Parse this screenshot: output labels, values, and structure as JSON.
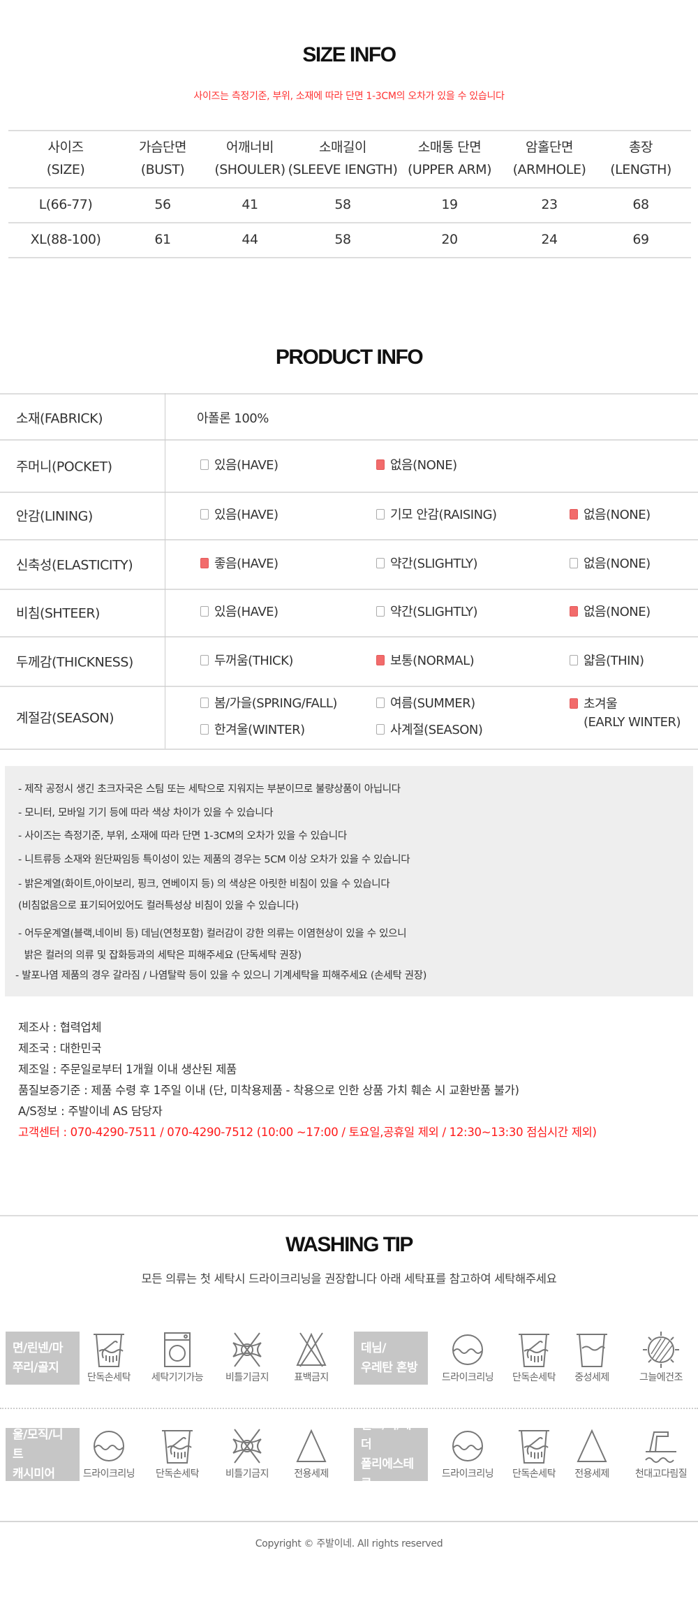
{
  "size_info": {
    "title": "SIZE INFO",
    "notice": "사이즈는 측정기준, 부위, 소재에 따라 단면 1-3CM의 오차가 있을 수 있습니다",
    "headers": [
      [
        "사이즈",
        "(SIZE)"
      ],
      [
        "가슴단면",
        "(BUST)"
      ],
      [
        "어깨너비",
        "(SHOULER)"
      ],
      [
        "소매길이",
        "(SLEEVE IENGTH)"
      ],
      [
        "소매통 단면",
        "(UPPER ARM)"
      ],
      [
        "암홀단면",
        "(ARMHOLE)"
      ],
      [
        "총장",
        "(LENGTH)"
      ]
    ],
    "rows": [
      [
        "L(66-77)",
        "56",
        "41",
        "58",
        "19",
        "23",
        "68"
      ],
      [
        "XL(88-100)",
        "61",
        "44",
        "58",
        "20",
        "24",
        "69"
      ]
    ]
  },
  "product_info": {
    "title": "PRODUCT INFO",
    "fabric": {
      "label": "소재(FABRICK)",
      "value": "아폴론 100%"
    },
    "rows": [
      {
        "label": "주머니(POCKET)",
        "options": [
          {
            "text": "있음(HAVE)",
            "checked": false
          },
          {
            "text": "없음(NONE)",
            "checked": true
          }
        ]
      },
      {
        "label": "안감(LINING)",
        "options": [
          {
            "text": "있음(HAVE)",
            "checked": false
          },
          {
            "text": "기모 안감(RAISING)",
            "checked": false
          },
          {
            "text": "없음(NONE)",
            "checked": true
          }
        ]
      },
      {
        "label": "신축성(ELASTICITY)",
        "options": [
          {
            "text": "좋음(HAVE)",
            "checked": true
          },
          {
            "text": "약간(SLIGHTLY)",
            "checked": false
          },
          {
            "text": "없음(NONE)",
            "checked": false
          }
        ]
      },
      {
        "label": "비침(SHTEER)",
        "options": [
          {
            "text": "있음(HAVE)",
            "checked": false
          },
          {
            "text": "약간(SLIGHTLY)",
            "checked": false
          },
          {
            "text": "없음(NONE)",
            "checked": true
          }
        ]
      },
      {
        "label": "두께감(THICKNESS)",
        "options": [
          {
            "text": "두꺼움(THICK)",
            "checked": false
          },
          {
            "text": "보통(NORMAL)",
            "checked": true
          },
          {
            "text": "얇음(THIN)",
            "checked": false
          }
        ]
      },
      {
        "label": "계절감(SEASON)",
        "options": [
          {
            "text": "봄/가을(SPRING/FALL)",
            "checked": false
          },
          {
            "text": "여름(SUMMER)",
            "checked": false
          },
          {
            "text": "초겨울\n(EARLY WINTER)",
            "checked": true
          },
          {
            "text": "한겨울(WINTER)",
            "checked": false
          },
          {
            "text": "사계절(SEASON)",
            "checked": false
          }
        ]
      }
    ],
    "check_color": "#f26b6b"
  },
  "notices": [
    "- 제작 공정시 생긴 초크자국은 스팀 또는 세탁으로 지워지는 부분이므로 불량상품이 아닙니다",
    "- 모니터, 모바일 기기 등에 따라 색상 차이가 있을 수 있습니다",
    "- 사이즈는 측정기준, 부위, 소재에 따라 단면 1-3CM의 오차가 있을 수 있습니다",
    "- 니트류등 소재와 원단짜임등 특이성이 있는 제품의 경우는 5CM 이상 오차가 있을 수 있습니다",
    "- 밝은계열(화이트,아이보리, 핑크, 연베이지 등) 의 색상은 아릿한 비침이 있을 수 있습니다",
    "(비침없음으로 표기되어있어도 컬러특성상 비침이 있을 수 있습니다)",
    "- 어두운계열(블랙,네이비 등) 데님(연청포함) 컬러감이 강한 의류는 이염현상이 있을 수 있으니",
    "  밝은 컬러의 의류 및 잡화등과의 세탁은 피해주세요 (단독세탁 권장)",
    "- 발포나염 제품의 경우 갈라짐 / 나염탈락 등이 있을 수 있으니 기계세탁을 피해주세요 (손세탁 권장)"
  ],
  "info": [
    "제조사 : 협력업체",
    "제조국 : 대한민국",
    "제조일 :  주문일로부터 1개월 이내 생산된 제품",
    "품질보증기준 : 제품 수령 후 1주일 이내 (단, 미착용제품 - 착용으로 인한 상품 가치 훼손 시 교환반품 불가)",
    "A/S정보 : 주발이네 AS 담당자"
  ],
  "customer_center": "고객센터 : 070-4290-7511 / 070-4290-7512 (10:00 ~17:00 / 토요일,공휴일 제외 / 12:30~13:30 점심시간 제외)",
  "washing": {
    "title": "WASHING TIP",
    "subtitle": "모든 의류는 첫 세탁시 드라이크리닝을 권장합니다 아래 세탁표를 참고하여 세탁해주세요",
    "groups": [
      {
        "category": [
          "면/린넨/마",
          "쭈리/골지"
        ],
        "items": [
          {
            "icon": "hand-wash-icon",
            "label": "단독손세탁"
          },
          {
            "icon": "washing-machine-icon",
            "label": "세탁기기가능"
          },
          {
            "icon": "no-wring-icon",
            "label": "비틀기금지"
          },
          {
            "icon": "no-bleach-icon",
            "label": "표백금지"
          }
        ]
      },
      {
        "category": [
          "데님/",
          "우레탄 혼방"
        ],
        "items": [
          {
            "icon": "dry-clean-icon",
            "label": "드라이크리닝"
          },
          {
            "icon": "hand-wash-icon",
            "label": "단독손세탁"
          },
          {
            "icon": "neutral-detergent-icon",
            "label": "중성세제"
          },
          {
            "icon": "shade-dry-icon",
            "label": "그늘에건조"
          }
        ]
      },
      {
        "category": [
          "울/모직/니트",
          "캐시미어"
        ],
        "items": [
          {
            "icon": "dry-clean-icon",
            "label": "드라이크리닝"
          },
          {
            "icon": "hand-wash-icon",
            "label": "단독손세탁"
          },
          {
            "icon": "no-wring-icon",
            "label": "비틀기금지"
          },
          {
            "icon": "special-detergent-icon",
            "label": "전용세제"
          }
        ]
      },
      {
        "category": [
          "실크/퍼/레더",
          "폴리에스테르"
        ],
        "items": [
          {
            "icon": "dry-clean-icon",
            "label": "드라이크리닝"
          },
          {
            "icon": "hand-wash-icon",
            "label": "단독손세탁"
          },
          {
            "icon": "special-detergent-icon",
            "label": "전용세제"
          },
          {
            "icon": "cloth-iron-icon",
            "label": "천대고다림질"
          }
        ]
      }
    ]
  },
  "footer": {
    "copyright": "Copyright © 주발이네. All rights reserved"
  }
}
